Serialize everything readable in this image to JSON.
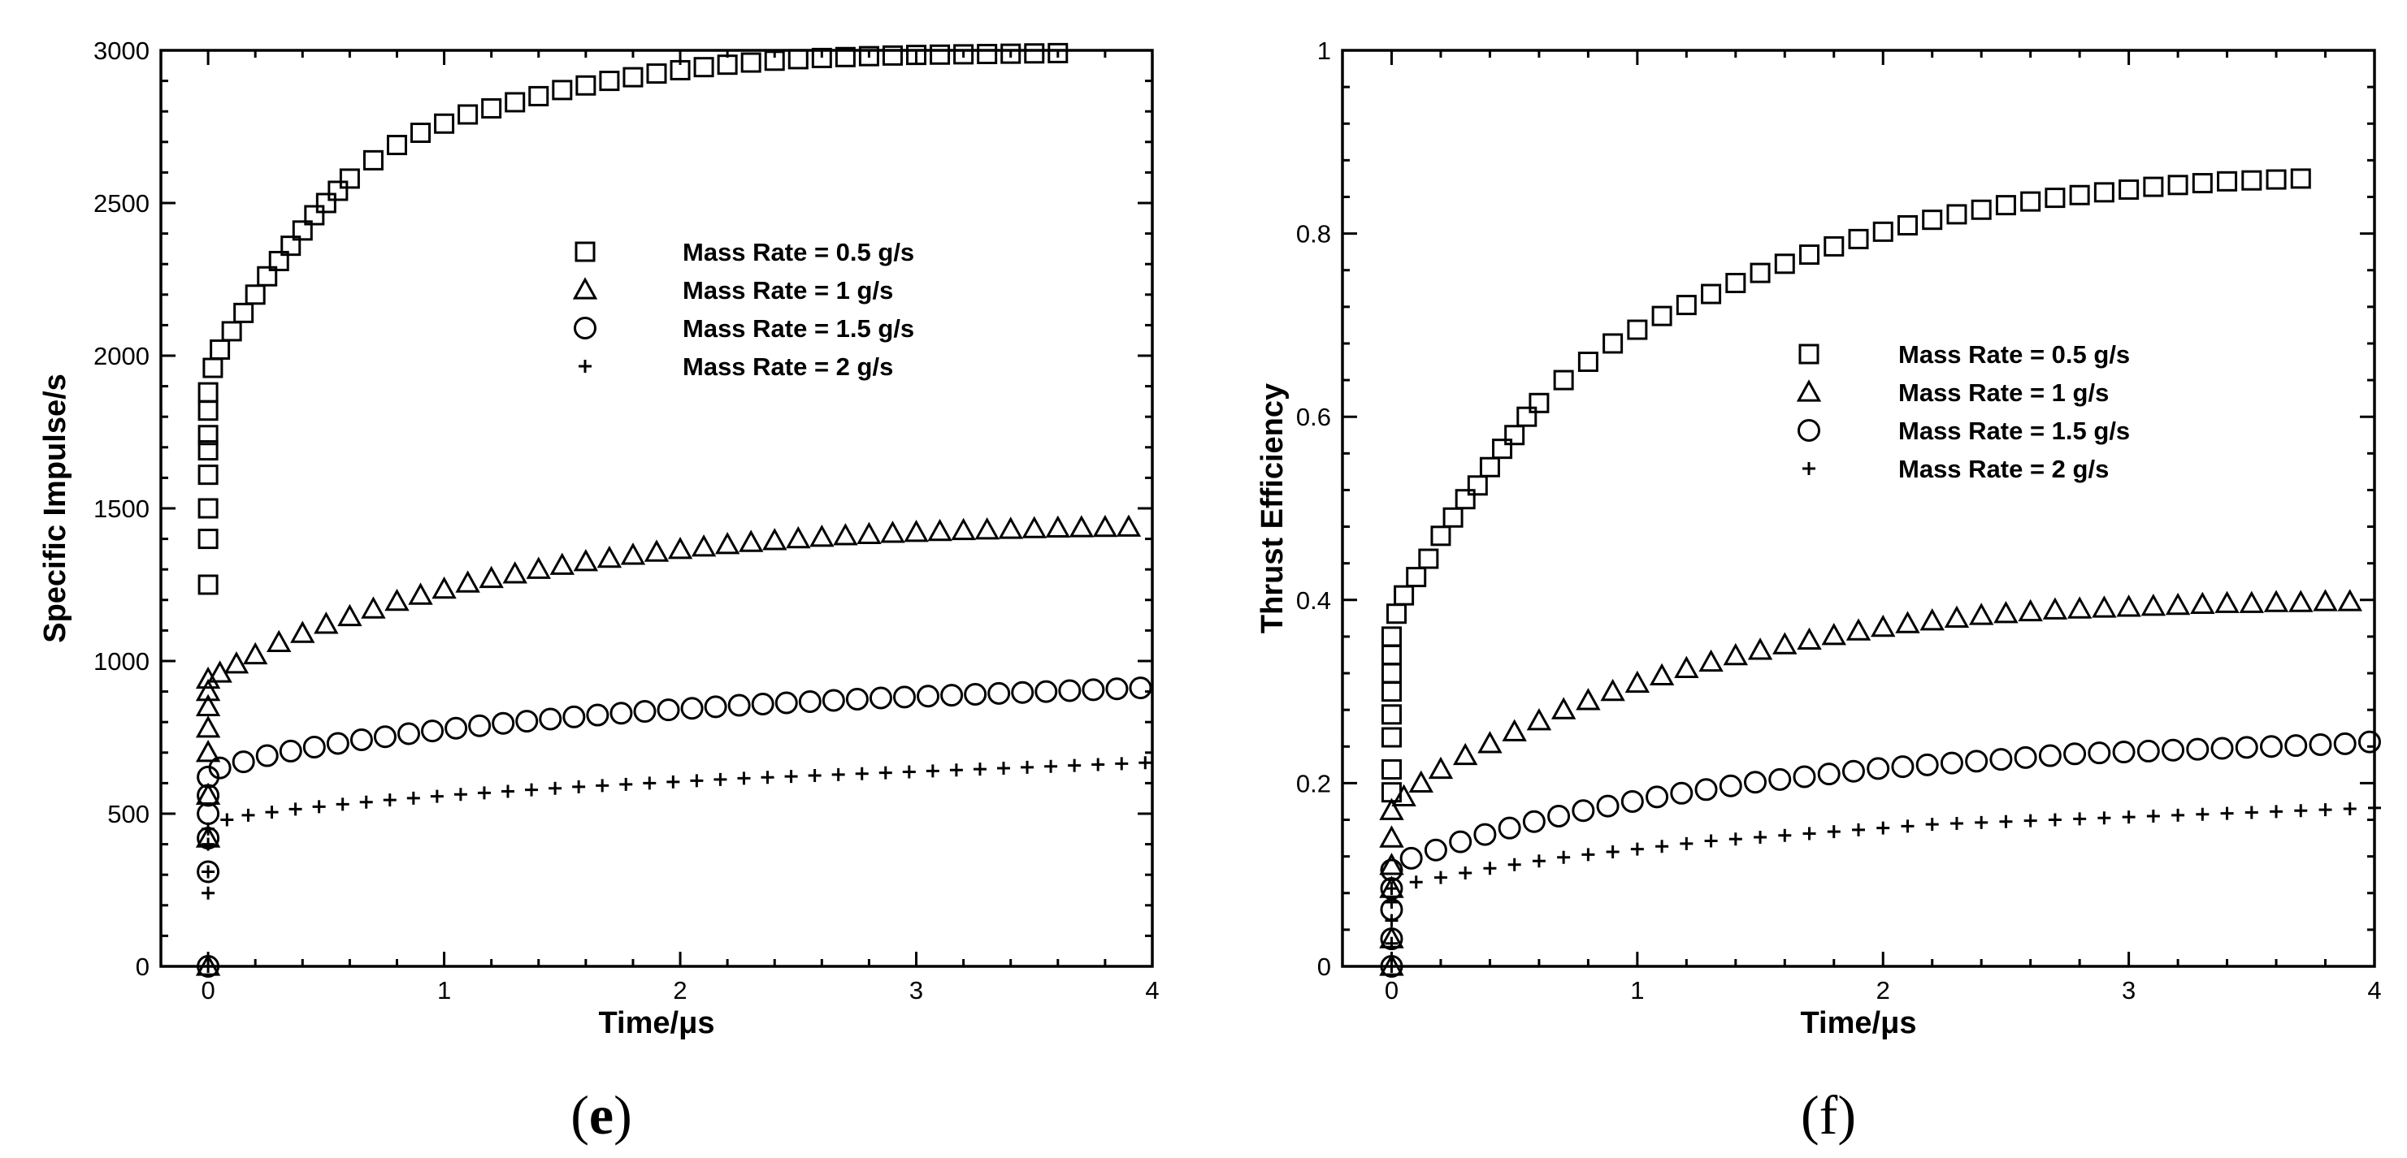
{
  "chart_data": [
    {
      "type": "scatter",
      "panel_label": "e",
      "xlabel": "Time/μs",
      "ylabel": "Specific Impulse/s",
      "xlim": [
        -0.2,
        4
      ],
      "ylim": [
        0,
        3000
      ],
      "xticks": [
        0,
        1,
        2,
        3,
        4
      ],
      "xtick_labels": [
        "0",
        "1",
        "2",
        "3",
        "4"
      ],
      "yticks": [
        0,
        500,
        1000,
        1500,
        2000,
        2500,
        3000
      ],
      "ytick_labels": [
        "0",
        "500",
        "1000",
        "1500",
        "2000",
        "2500",
        "3000"
      ],
      "legend_position": "upper-middle",
      "series": [
        {
          "name": "Mass Rate = 0.5 g/s",
          "marker": "square",
          "x": [
            0,
            0,
            0,
            0,
            0,
            0,
            0,
            0,
            0.02,
            0.05,
            0.1,
            0.15,
            0.2,
            0.25,
            0.3,
            0.35,
            0.4,
            0.45,
            0.5,
            0.55,
            0.6,
            0.7,
            0.8,
            0.9,
            1.0,
            1.1,
            1.2,
            1.3,
            1.4,
            1.5,
            1.6,
            1.7,
            1.8,
            1.9,
            2.0,
            2.1,
            2.2,
            2.3,
            2.4,
            2.5,
            2.6,
            2.7,
            2.8,
            2.9,
            3.0,
            3.1,
            3.2,
            3.3,
            3.4,
            3.5,
            3.6
          ],
          "y": [
            1250,
            1400,
            1500,
            1610,
            1690,
            1740,
            1820,
            1880,
            1960,
            2020,
            2080,
            2140,
            2200,
            2260,
            2310,
            2360,
            2410,
            2460,
            2500,
            2540,
            2580,
            2640,
            2690,
            2730,
            2760,
            2790,
            2810,
            2830,
            2850,
            2870,
            2885,
            2900,
            2912,
            2924,
            2935,
            2945,
            2953,
            2960,
            2966,
            2971,
            2975,
            2978,
            2981,
            2983,
            2985,
            2986,
            2987,
            2988,
            2989,
            2990,
            2991
          ]
        },
        {
          "name": "Mass Rate = 1 g/s",
          "marker": "triangle",
          "x": [
            0,
            0,
            0,
            0,
            0,
            0,
            0,
            0,
            0.05,
            0.12,
            0.2,
            0.3,
            0.4,
            0.5,
            0.6,
            0.7,
            0.8,
            0.9,
            1.0,
            1.1,
            1.2,
            1.3,
            1.4,
            1.5,
            1.6,
            1.7,
            1.8,
            1.9,
            2.0,
            2.1,
            2.2,
            2.3,
            2.4,
            2.5,
            2.6,
            2.7,
            2.8,
            2.9,
            3.0,
            3.1,
            3.2,
            3.3,
            3.4,
            3.5,
            3.6,
            3.7,
            3.8,
            3.9
          ],
          "y": [
            0,
            420,
            560,
            700,
            780,
            850,
            900,
            940,
            960,
            990,
            1020,
            1060,
            1090,
            1120,
            1145,
            1170,
            1195,
            1215,
            1235,
            1255,
            1270,
            1285,
            1300,
            1313,
            1325,
            1336,
            1346,
            1356,
            1365,
            1373,
            1381,
            1388,
            1394,
            1400,
            1405,
            1410,
            1414,
            1418,
            1421,
            1424,
            1427,
            1429,
            1431,
            1433,
            1435,
            1436,
            1437,
            1438
          ]
        },
        {
          "name": "Mass Rate = 1.5 g/s",
          "marker": "circle",
          "x": [
            0,
            0,
            0,
            0,
            0,
            0,
            0.05,
            0.15,
            0.25,
            0.35,
            0.45,
            0.55,
            0.65,
            0.75,
            0.85,
            0.95,
            1.05,
            1.15,
            1.25,
            1.35,
            1.45,
            1.55,
            1.65,
            1.75,
            1.85,
            1.95,
            2.05,
            2.15,
            2.25,
            2.35,
            2.45,
            2.55,
            2.65,
            2.75,
            2.85,
            2.95,
            3.05,
            3.15,
            3.25,
            3.35,
            3.45,
            3.55,
            3.65,
            3.75,
            3.85,
            3.95
          ],
          "y": [
            0,
            310,
            420,
            500,
            560,
            620,
            650,
            670,
            690,
            705,
            718,
            730,
            742,
            752,
            762,
            771,
            780,
            788,
            796,
            803,
            810,
            817,
            823,
            829,
            835,
            840,
            845,
            850,
            855,
            859,
            863,
            867,
            871,
            875,
            879,
            882,
            885,
            888,
            891,
            894,
            897,
            900,
            903,
            906,
            909,
            912
          ]
        },
        {
          "name": "Mass Rate = 2 g/s",
          "marker": "plus",
          "x": [
            0,
            0,
            0,
            0,
            0,
            0.08,
            0.17,
            0.27,
            0.37,
            0.47,
            0.57,
            0.67,
            0.77,
            0.87,
            0.97,
            1.07,
            1.17,
            1.27,
            1.37,
            1.47,
            1.57,
            1.67,
            1.77,
            1.87,
            1.97,
            2.07,
            2.17,
            2.27,
            2.37,
            2.47,
            2.57,
            2.67,
            2.77,
            2.87,
            2.97,
            3.07,
            3.17,
            3.27,
            3.37,
            3.47,
            3.57,
            3.67,
            3.77,
            3.87,
            3.97
          ],
          "y": [
            0,
            240,
            310,
            400,
            450,
            480,
            495,
            505,
            515,
            523,
            531,
            538,
            545,
            551,
            557,
            563,
            568,
            573,
            578,
            583,
            588,
            592,
            596,
            600,
            604,
            608,
            612,
            616,
            619,
            622,
            625,
            628,
            631,
            634,
            637,
            640,
            643,
            646,
            649,
            652,
            655,
            658,
            661,
            664,
            667
          ]
        }
      ]
    },
    {
      "type": "scatter",
      "panel_label": "f",
      "xlabel": "Time/μs",
      "ylabel": "Thrust Efficiency",
      "xlim": [
        -0.2,
        4
      ],
      "ylim": [
        0,
        1
      ],
      "xticks": [
        0,
        1,
        2,
        3,
        4
      ],
      "xtick_labels": [
        "0",
        "1",
        "2",
        "3",
        "4"
      ],
      "yticks": [
        0,
        0.2,
        0.4,
        0.6,
        0.8,
        1
      ],
      "ytick_labels": [
        "0",
        "0.2",
        "0.4",
        "0.6",
        "0.8",
        "1"
      ],
      "legend_position": "upper-middle",
      "series": [
        {
          "name": "Mass Rate = 0.5 g/s",
          "marker": "square",
          "x": [
            0,
            0,
            0,
            0,
            0,
            0,
            0,
            0,
            0.02,
            0.05,
            0.1,
            0.15,
            0.2,
            0.25,
            0.3,
            0.35,
            0.4,
            0.45,
            0.5,
            0.55,
            0.6,
            0.7,
            0.8,
            0.9,
            1.0,
            1.1,
            1.2,
            1.3,
            1.4,
            1.5,
            1.6,
            1.7,
            1.8,
            1.9,
            2.0,
            2.1,
            2.2,
            2.3,
            2.4,
            2.5,
            2.6,
            2.7,
            2.8,
            2.9,
            3.0,
            3.1,
            3.2,
            3.3,
            3.4,
            3.5,
            3.6,
            3.7
          ],
          "y": [
            0.19,
            0.215,
            0.25,
            0.275,
            0.3,
            0.32,
            0.34,
            0.36,
            0.385,
            0.405,
            0.425,
            0.445,
            0.47,
            0.49,
            0.51,
            0.525,
            0.545,
            0.565,
            0.58,
            0.6,
            0.615,
            0.64,
            0.66,
            0.68,
            0.695,
            0.71,
            0.722,
            0.734,
            0.746,
            0.757,
            0.767,
            0.777,
            0.786,
            0.794,
            0.802,
            0.809,
            0.815,
            0.821,
            0.826,
            0.831,
            0.835,
            0.839,
            0.842,
            0.845,
            0.848,
            0.851,
            0.853,
            0.855,
            0.857,
            0.858,
            0.859,
            0.86
          ]
        },
        {
          "name": "Mass Rate = 1 g/s",
          "marker": "triangle",
          "x": [
            0,
            0,
            0,
            0,
            0,
            0,
            0.05,
            0.12,
            0.2,
            0.3,
            0.4,
            0.5,
            0.6,
            0.7,
            0.8,
            0.9,
            1.0,
            1.1,
            1.2,
            1.3,
            1.4,
            1.5,
            1.6,
            1.7,
            1.8,
            1.9,
            2.0,
            2.1,
            2.2,
            2.3,
            2.4,
            2.5,
            2.6,
            2.7,
            2.8,
            2.9,
            3.0,
            3.1,
            3.2,
            3.3,
            3.4,
            3.5,
            3.6,
            3.7,
            3.8,
            3.9
          ],
          "y": [
            0,
            0.03,
            0.085,
            0.11,
            0.14,
            0.17,
            0.185,
            0.2,
            0.215,
            0.23,
            0.243,
            0.256,
            0.268,
            0.28,
            0.29,
            0.3,
            0.309,
            0.317,
            0.325,
            0.332,
            0.339,
            0.345,
            0.351,
            0.356,
            0.361,
            0.366,
            0.37,
            0.374,
            0.377,
            0.38,
            0.383,
            0.385,
            0.387,
            0.389,
            0.39,
            0.391,
            0.392,
            0.393,
            0.394,
            0.395,
            0.396,
            0.396,
            0.397,
            0.397,
            0.398,
            0.398
          ]
        },
        {
          "name": "Mass Rate = 1.5 g/s",
          "marker": "circle",
          "x": [
            0,
            0,
            0,
            0,
            0,
            0.08,
            0.18,
            0.28,
            0.38,
            0.48,
            0.58,
            0.68,
            0.78,
            0.88,
            0.98,
            1.08,
            1.18,
            1.28,
            1.38,
            1.48,
            1.58,
            1.68,
            1.78,
            1.88,
            1.98,
            2.08,
            2.18,
            2.28,
            2.38,
            2.48,
            2.58,
            2.68,
            2.78,
            2.88,
            2.98,
            3.08,
            3.18,
            3.28,
            3.38,
            3.48,
            3.58,
            3.68,
            3.78,
            3.88,
            3.98
          ],
          "y": [
            0,
            0.03,
            0.062,
            0.085,
            0.105,
            0.118,
            0.127,
            0.136,
            0.144,
            0.151,
            0.158,
            0.164,
            0.17,
            0.175,
            0.18,
            0.185,
            0.189,
            0.193,
            0.197,
            0.201,
            0.204,
            0.207,
            0.21,
            0.213,
            0.216,
            0.218,
            0.22,
            0.222,
            0.224,
            0.226,
            0.228,
            0.23,
            0.232,
            0.233,
            0.234,
            0.235,
            0.236,
            0.237,
            0.238,
            0.239,
            0.24,
            0.241,
            0.242,
            0.243,
            0.245
          ]
        },
        {
          "name": "Mass Rate = 2 g/s",
          "marker": "plus",
          "x": [
            0,
            0,
            0,
            0,
            0,
            0.1,
            0.2,
            0.3,
            0.4,
            0.5,
            0.6,
            0.7,
            0.8,
            0.9,
            1.0,
            1.1,
            1.2,
            1.3,
            1.4,
            1.5,
            1.6,
            1.7,
            1.8,
            1.9,
            2.0,
            2.1,
            2.2,
            2.3,
            2.4,
            2.5,
            2.6,
            2.7,
            2.8,
            2.9,
            3.0,
            3.1,
            3.2,
            3.3,
            3.4,
            3.5,
            3.6,
            3.7,
            3.8,
            3.9,
            4.0
          ],
          "y": [
            0,
            0.025,
            0.05,
            0.07,
            0.085,
            0.092,
            0.097,
            0.102,
            0.107,
            0.111,
            0.115,
            0.119,
            0.122,
            0.125,
            0.128,
            0.131,
            0.134,
            0.137,
            0.139,
            0.141,
            0.143,
            0.145,
            0.147,
            0.149,
            0.151,
            0.153,
            0.155,
            0.156,
            0.157,
            0.158,
            0.159,
            0.16,
            0.161,
            0.162,
            0.163,
            0.164,
            0.165,
            0.166,
            0.167,
            0.168,
            0.169,
            0.17,
            0.171,
            0.172,
            0.173
          ]
        }
      ]
    }
  ]
}
